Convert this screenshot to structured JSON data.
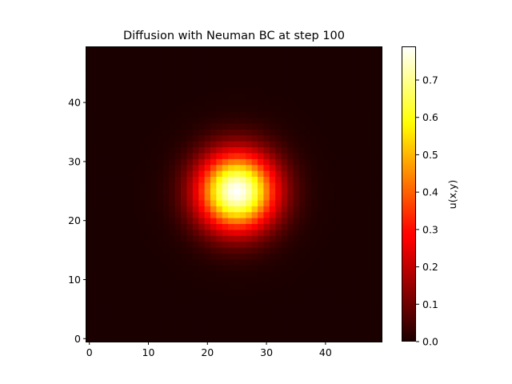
{
  "chart_data": {
    "type": "heatmap",
    "title": "Diffusion with Neuman BC at step 100",
    "xlabel": "",
    "ylabel": "",
    "grid": false,
    "origin": "lower",
    "colormap": "hot",
    "grid_size": [
      50,
      50
    ],
    "xlim": [
      -0.5,
      49.5
    ],
    "ylim": [
      -0.5,
      49.5
    ],
    "x_ticks": [
      0,
      10,
      20,
      30,
      40
    ],
    "y_ticks": [
      0,
      10,
      20,
      30,
      40
    ],
    "field": {
      "shape": "gaussian",
      "center_x": 25,
      "center_y": 25,
      "peak_value": 0.79,
      "sigma": 4.6
    },
    "colorbar": {
      "label": "u(x,y)",
      "min": 0.0,
      "max": 0.79,
      "ticks": [
        "0.0",
        "0.1",
        "0.2",
        "0.3",
        "0.4",
        "0.5",
        "0.6",
        "0.7"
      ]
    }
  }
}
